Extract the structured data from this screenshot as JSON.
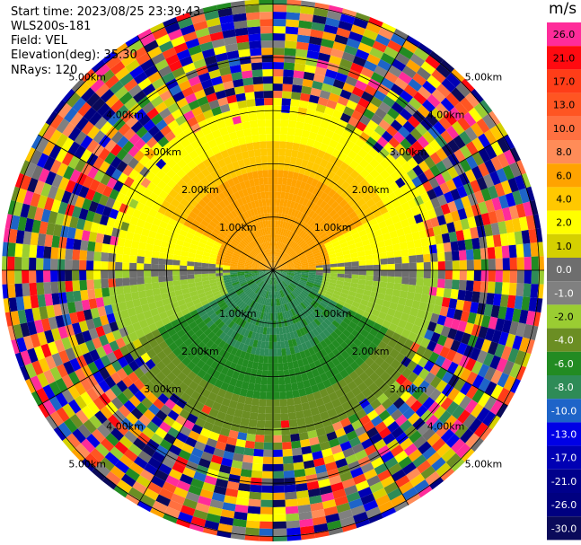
{
  "header": {
    "start_time": "Start time: 2023/08/25 23:39:43",
    "instrument": "WLS200s-181",
    "field": "Field: VEL",
    "elevation": "Elevation(deg): 35.30",
    "nrays": "NRays: 120"
  },
  "chart_data": {
    "type": "heatmap",
    "projection": "polar-ppi",
    "field": "VEL",
    "units": "m/s",
    "range_rings": [
      {
        "label": "1.00km"
      },
      {
        "label": "2.00km"
      },
      {
        "label": "3.00km"
      },
      {
        "label": "4.00km"
      },
      {
        "label": "5.00km"
      }
    ],
    "spokes_deg": [
      0,
      30,
      60,
      90,
      120,
      150,
      180,
      210,
      240,
      270,
      300,
      330
    ],
    "colorbar": {
      "unit_label": "m/s",
      "ticks": [
        "26.0",
        "21.0",
        "17.0",
        "13.0",
        "10.0",
        "8.0",
        "6.0",
        "4.0",
        "2.0",
        "1.0",
        "0.0",
        "-1.0",
        "-2.0",
        "-4.0",
        "-6.0",
        "-8.0",
        "-10.0",
        "-13.0",
        "-17.0",
        "-21.0",
        "-26.0",
        "-30.0"
      ],
      "colors": [
        "#ff2c9a",
        "#ff0a10",
        "#ff3d18",
        "#ff5522",
        "#ff7040",
        "#ff8c58",
        "#ffa300",
        "#ffc800",
        "#ffff00",
        "#d5d000",
        "#6e6e6e",
        "#808080",
        "#9acd32",
        "#6b8e23",
        "#228b22",
        "#2e8b57",
        "#1e64c8",
        "#0000e6",
        "#0000b4",
        "#00008b",
        "#000080",
        "#0a0a5a"
      ]
    },
    "near_field": [
      {
        "region": "north-near",
        "value": 8.0
      },
      {
        "region": "north-mid",
        "value": 4.0
      },
      {
        "region": "north-far",
        "value": 2.0
      },
      {
        "region": "equator",
        "value": 0.0
      },
      {
        "region": "south-near",
        "value": -8.0
      },
      {
        "region": "south-mid",
        "value": -6.0
      },
      {
        "region": "south-far",
        "value": -2.0
      }
    ]
  }
}
